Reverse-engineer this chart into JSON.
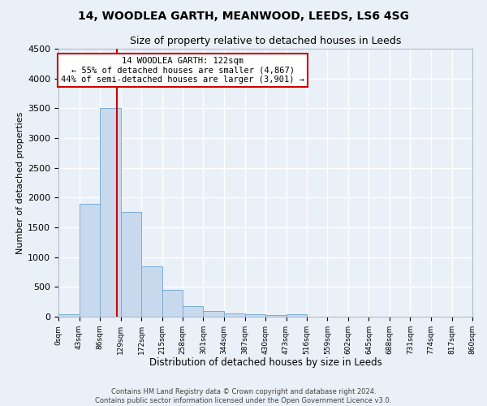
{
  "title": "14, WOODLEA GARTH, MEANWOOD, LEEDS, LS6 4SG",
  "subtitle": "Size of property relative to detached houses in Leeds",
  "xlabel": "Distribution of detached houses by size in Leeds",
  "ylabel": "Number of detached properties",
  "bar_color": "#c8d9ee",
  "bar_edge_color": "#7aadd4",
  "background_color": "#eaf0f8",
  "grid_color": "#ffffff",
  "bin_edges": [
    0,
    43,
    86,
    129,
    172,
    215,
    258,
    301,
    344,
    387,
    430,
    473,
    516,
    559,
    602,
    645,
    688,
    731,
    774,
    817,
    860
  ],
  "bin_labels": [
    "0sqm",
    "43sqm",
    "86sqm",
    "129sqm",
    "172sqm",
    "215sqm",
    "258sqm",
    "301sqm",
    "344sqm",
    "387sqm",
    "430sqm",
    "473sqm",
    "516sqm",
    "559sqm",
    "602sqm",
    "645sqm",
    "688sqm",
    "731sqm",
    "774sqm",
    "817sqm",
    "860sqm"
  ],
  "bar_heights": [
    40,
    1900,
    3500,
    1760,
    840,
    450,
    175,
    100,
    60,
    40,
    30,
    40,
    0,
    0,
    0,
    0,
    0,
    0,
    0,
    0
  ],
  "vline_x": 122,
  "vline_color": "#cc0000",
  "annotation_title": "14 WOODLEA GARTH: 122sqm",
  "annotation_line1": "← 55% of detached houses are smaller (4,867)",
  "annotation_line2": "44% of semi-detached houses are larger (3,901) →",
  "annotation_box_color": "#ffffff",
  "annotation_box_edge": "#cc0000",
  "ylim": [
    0,
    4500
  ],
  "yticks": [
    0,
    500,
    1000,
    1500,
    2000,
    2500,
    3000,
    3500,
    4000,
    4500
  ],
  "footer_line1": "Contains HM Land Registry data © Crown copyright and database right 2024.",
  "footer_line2": "Contains public sector information licensed under the Open Government Licence v3.0."
}
